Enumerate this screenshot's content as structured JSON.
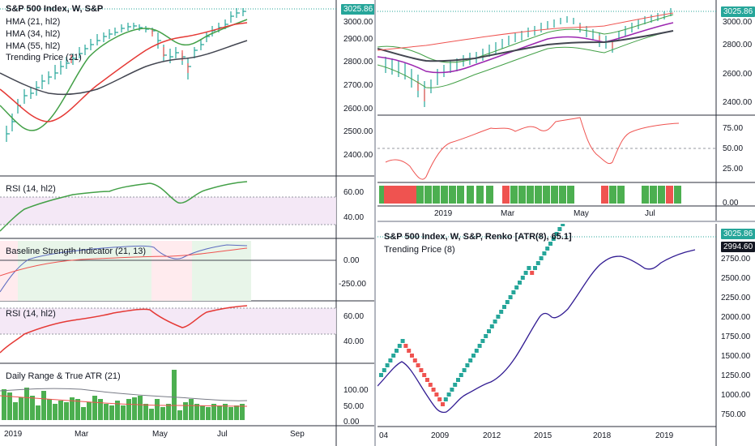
{
  "colors": {
    "green": "#26a69a",
    "red": "#ef5350",
    "dark": "#434651",
    "bar_green": "#4caf50",
    "purple": "#9c27b0",
    "tag_green": "#26a69a",
    "tag_dark": "#131722"
  },
  "left_chart": {
    "main_legend": {
      "title": "S&P 500 Index, W, S&P",
      "hma21": "HMA (21, hl2)",
      "hma34": "HMA (34, hl2)",
      "hma55": "HMA (55, hl2)",
      "trending": "Trending Price (21)"
    },
    "price_tag": "3025.86",
    "main_axis": [
      "3000.00",
      "2900.00",
      "2800.00",
      "2700.00",
      "2600.00",
      "2500.00",
      "2400.00"
    ],
    "rsi1_legend": "RSI (14, hl2)",
    "rsi1_axis": [
      "60.00",
      "40.00"
    ],
    "bsi_legend": "Baseline Strength Indicator (21, 13)",
    "bsi_axis": [
      "0.00",
      "-250.00"
    ],
    "rsi2_legend": "RSI (14, hl2)",
    "rsi2_axis": [
      "60.00",
      "40.00"
    ],
    "atr_legend": "Daily Range & True ATR (21)",
    "atr_axis": [
      "100.00",
      "50.00",
      "0.00"
    ],
    "time_axis": [
      "2019",
      "Mar",
      "May",
      "Jul",
      "Sep"
    ]
  },
  "top_right_chart": {
    "price_tag": "3025.86",
    "main_axis": [
      "3000.00",
      "2800.00",
      "2600.00",
      "2400.00"
    ],
    "osc_axis": [
      "75.00",
      "50.00",
      "25.00"
    ],
    "bar_axis": [
      "0.00"
    ],
    "time_axis": [
      "2019",
      "Mar",
      "May",
      "Jul"
    ]
  },
  "renko_chart": {
    "title": "S&P 500 Index, W, S&P, Renko [ATR(8), 65.1]",
    "trending": "Trending Price (8)",
    "price_tag1": "3025.86",
    "price_tag2": "2994.60",
    "axis": [
      "2750.00",
      "2500.00",
      "2250.00",
      "2000.00",
      "1750.00",
      "1500.00",
      "1250.00",
      "1000.00",
      "750.00"
    ],
    "time_axis": [
      "04",
      "2009",
      "2012",
      "2015",
      "2018",
      "2019"
    ]
  }
}
